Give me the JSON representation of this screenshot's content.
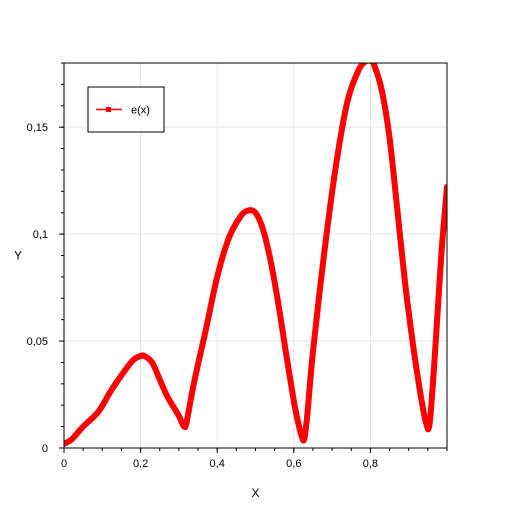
{
  "chart_data": {
    "type": "line",
    "xlabel": "X",
    "ylabel": "Y",
    "xlim": [
      0,
      1.0
    ],
    "ylim": [
      0,
      0.18
    ],
    "x_ticks": [
      0,
      0.2,
      0.4,
      0.6,
      0.8
    ],
    "x_tick_labels": [
      "0",
      "0,2",
      "0,4",
      "0,6",
      "0,8"
    ],
    "y_ticks": [
      0,
      0.05,
      0.1,
      0.15
    ],
    "y_tick_labels": [
      "0",
      "0,05",
      "0,1",
      "0,15"
    ],
    "grid": true,
    "legend_position": "top-left",
    "series": [
      {
        "name": "e(x)",
        "color": "#ff0000",
        "x": [
          0,
          0.02,
          0.05,
          0.09,
          0.12,
          0.15,
          0.18,
          0.2,
          0.21,
          0.23,
          0.25,
          0.27,
          0.29,
          0.3,
          0.31,
          0.315,
          0.32,
          0.34,
          0.37,
          0.4,
          0.43,
          0.46,
          0.48,
          0.5,
          0.52,
          0.54,
          0.56,
          0.58,
          0.6,
          0.61,
          0.62,
          0.627,
          0.635,
          0.65,
          0.68,
          0.71,
          0.74,
          0.77,
          0.79,
          0.8,
          0.81,
          0.83,
          0.85,
          0.87,
          0.89,
          0.91,
          0.93,
          0.945,
          0.955,
          0.97,
          0.985,
          1.0
        ],
        "values": [
          0.002,
          0.004,
          0.01,
          0.017,
          0.026,
          0.034,
          0.041,
          0.043,
          0.043,
          0.04,
          0.032,
          0.024,
          0.018,
          0.015,
          0.011,
          0.01,
          0.012,
          0.031,
          0.055,
          0.08,
          0.098,
          0.108,
          0.111,
          0.11,
          0.102,
          0.087,
          0.067,
          0.044,
          0.022,
          0.013,
          0.006,
          0.004,
          0.015,
          0.045,
          0.092,
          0.132,
          0.162,
          0.177,
          0.181,
          0.181,
          0.179,
          0.167,
          0.145,
          0.112,
          0.078,
          0.05,
          0.026,
          0.012,
          0.012,
          0.048,
          0.09,
          0.122
        ]
      }
    ]
  }
}
